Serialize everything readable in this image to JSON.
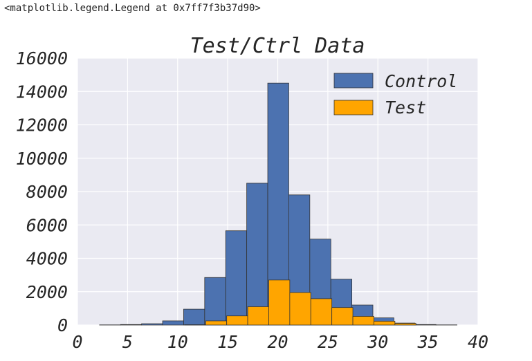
{
  "output_text": "<matplotlib.legend.Legend at 0x7ff7f3b37d90>",
  "chart_data": {
    "type": "bar",
    "title": "Test/Ctrl Data",
    "xlabel": "",
    "ylabel": "",
    "xlim": [
      0,
      40
    ],
    "ylim": [
      0,
      16000
    ],
    "xticks": [
      0,
      5,
      10,
      15,
      20,
      25,
      30,
      35,
      40
    ],
    "yticks": [
      0,
      2000,
      4000,
      6000,
      8000,
      10000,
      12000,
      14000,
      16000
    ],
    "grid": true,
    "legend_position": "top-right",
    "series": [
      {
        "name": "Control",
        "color": "#4c72b0",
        "bin_edges": [
          2.2,
          4.3,
          6.4,
          8.5,
          10.6,
          12.7,
          14.8,
          16.9,
          19.0,
          21.1,
          23.2,
          25.3,
          27.4,
          29.5,
          31.6,
          33.7,
          35.8,
          37.9
        ],
        "values": [
          10,
          30,
          80,
          250,
          950,
          2850,
          5650,
          8500,
          14500,
          7800,
          5150,
          2750,
          1200,
          430,
          120,
          30,
          10
        ]
      },
      {
        "name": "Test",
        "color": "#ffa500",
        "bin_edges": [
          10.7,
          12.8,
          14.9,
          17.0,
          19.1,
          21.2,
          23.3,
          25.4,
          27.5,
          29.6,
          31.7,
          33.8
        ],
        "values": [
          20,
          250,
          550,
          1100,
          2700,
          1950,
          1580,
          1050,
          520,
          230,
          100
        ]
      }
    ]
  }
}
